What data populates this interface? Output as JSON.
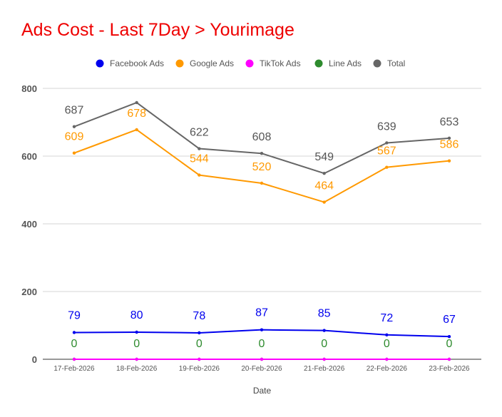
{
  "chart_data": {
    "type": "line",
    "title": "Ads Cost - Last 7Day > Yourimage",
    "xlabel": "Date",
    "ylabel": "",
    "ylim": [
      0,
      800
    ],
    "yticks": [
      0,
      200,
      400,
      600,
      800
    ],
    "grid": true,
    "legend_position": "top",
    "categories": [
      "17-Feb-2026",
      "18-Feb-2026",
      "19-Feb-2026",
      "20-Feb-2026",
      "21-Feb-2026",
      "22-Feb-2026",
      "23-Feb-2026"
    ],
    "series": [
      {
        "name": "Facebook Ads",
        "color": "#0000ee",
        "values": [
          79,
          80,
          78,
          87,
          85,
          72,
          67
        ],
        "labels": true
      },
      {
        "name": "Google Ads",
        "color": "#ff9900",
        "values": [
          609,
          678,
          544,
          520,
          464,
          567,
          586
        ],
        "labels": true
      },
      {
        "name": "TikTok Ads",
        "color": "#ff00ff",
        "values": [
          0,
          0,
          0,
          0,
          0,
          0,
          0
        ],
        "labels": false
      },
      {
        "name": "Line Ads",
        "color": "#2e8b2e",
        "values": [
          0,
          0,
          0,
          0,
          0,
          0,
          0
        ],
        "labels": true
      },
      {
        "name": "Total",
        "color": "#666666",
        "values": [
          687,
          758,
          622,
          608,
          549,
          639,
          653
        ],
        "labels": true
      }
    ],
    "point_labels": {
      "Facebook Ads": [
        "79",
        "80",
        "78",
        "87",
        "85",
        "72",
        "67"
      ],
      "Google Ads": [
        "609",
        "678",
        "544",
        "520",
        "464",
        "567",
        "586"
      ],
      "Line Ads": [
        "0",
        "0",
        "0",
        "0",
        "0",
        "0",
        "0"
      ],
      "Total": [
        "687",
        "",
        "622",
        "608",
        "549",
        "639",
        "653"
      ]
    }
  }
}
